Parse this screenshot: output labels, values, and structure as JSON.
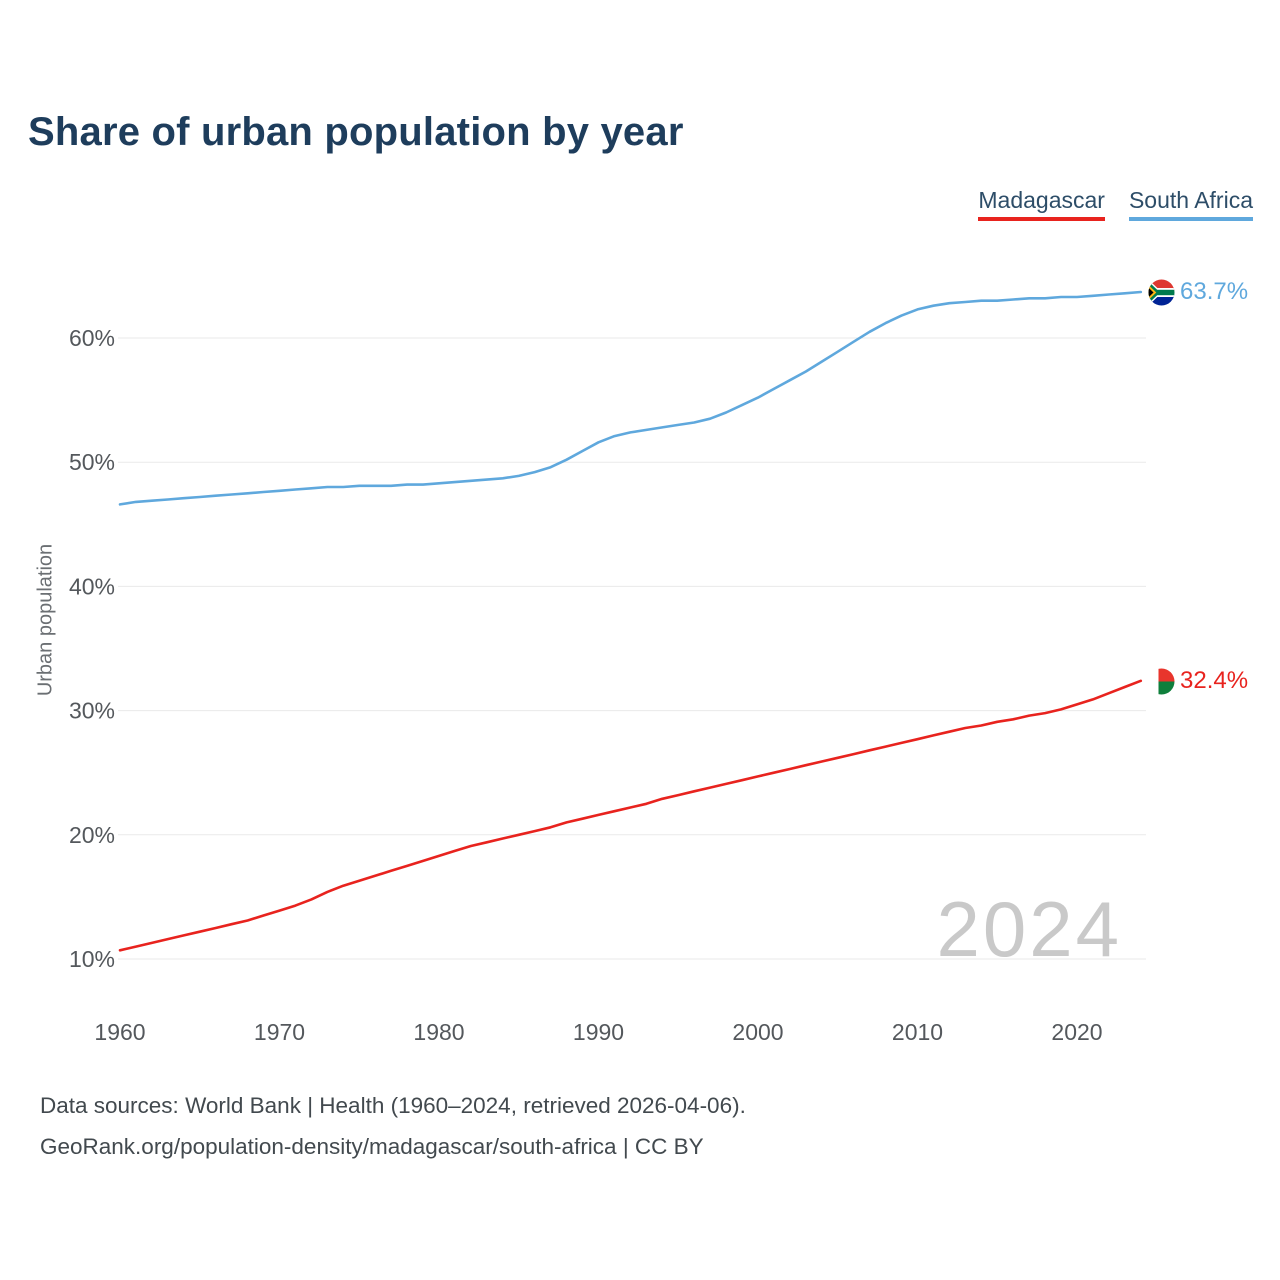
{
  "title": "Share of urban population by year",
  "legend": [
    {
      "label": "Madagascar",
      "color": "#e8231e"
    },
    {
      "label": "South Africa",
      "color": "#5fa8dd"
    }
  ],
  "watermark": "2024",
  "end_labels": [
    {
      "series": "South Africa",
      "value": "63.7%",
      "color": "#5fa8dd",
      "icon": "south-africa-flag-icon"
    },
    {
      "series": "Madagascar",
      "value": "32.4%",
      "color": "#e8231e",
      "icon": "madagascar-flag-icon"
    }
  ],
  "footer": {
    "line1": "Data sources: World Bank | Health (1960–2024, retrieved 2026-04-06).",
    "line2": "GeoRank.org/population-density/madagascar/south-africa | CC BY"
  },
  "chart_data": {
    "type": "line",
    "title": "Share of urban population by year",
    "xlabel": "",
    "ylabel": "Urban population",
    "xlim": [
      1960,
      2024
    ],
    "ylim": [
      10,
      65
    ],
    "grid": "horizontal-only",
    "legend_position": "top-right",
    "x_ticks": [
      1960,
      1970,
      1980,
      1990,
      2000,
      2010,
      2020
    ],
    "y_ticks": [
      "10%",
      "20%",
      "30%",
      "40%",
      "50%",
      "60%"
    ],
    "y_tick_values": [
      10,
      20,
      30,
      40,
      50,
      60
    ],
    "x": [
      1960,
      1961,
      1962,
      1963,
      1964,
      1965,
      1966,
      1967,
      1968,
      1969,
      1970,
      1971,
      1972,
      1973,
      1974,
      1975,
      1976,
      1977,
      1978,
      1979,
      1980,
      1981,
      1982,
      1983,
      1984,
      1985,
      1986,
      1987,
      1988,
      1989,
      1990,
      1991,
      1992,
      1993,
      1994,
      1995,
      1996,
      1997,
      1998,
      1999,
      2000,
      2001,
      2002,
      2003,
      2004,
      2005,
      2006,
      2007,
      2008,
      2009,
      2010,
      2011,
      2012,
      2013,
      2014,
      2015,
      2016,
      2017,
      2018,
      2019,
      2020,
      2021,
      2022,
      2023,
      2024
    ],
    "series": [
      {
        "name": "Madagascar",
        "color": "#e8231e",
        "values": [
          10.7,
          11.0,
          11.3,
          11.6,
          11.9,
          12.2,
          12.5,
          12.8,
          13.1,
          13.5,
          13.9,
          14.3,
          14.8,
          15.4,
          15.9,
          16.3,
          16.7,
          17.1,
          17.5,
          17.9,
          18.3,
          18.7,
          19.1,
          19.4,
          19.7,
          20.0,
          20.3,
          20.6,
          21.0,
          21.3,
          21.6,
          21.9,
          22.2,
          22.5,
          22.9,
          23.2,
          23.5,
          23.8,
          24.1,
          24.4,
          24.7,
          25.0,
          25.3,
          25.6,
          25.9,
          26.2,
          26.5,
          26.8,
          27.1,
          27.4,
          27.7,
          28.0,
          28.3,
          28.6,
          28.8,
          29.1,
          29.3,
          29.6,
          29.8,
          30.1,
          30.5,
          30.9,
          31.4,
          31.9,
          32.4
        ]
      },
      {
        "name": "South Africa",
        "color": "#5fa8dd",
        "values": [
          46.6,
          46.8,
          46.9,
          47.0,
          47.1,
          47.2,
          47.3,
          47.4,
          47.5,
          47.6,
          47.7,
          47.8,
          47.9,
          48.0,
          48.0,
          48.1,
          48.1,
          48.1,
          48.2,
          48.2,
          48.3,
          48.4,
          48.5,
          48.6,
          48.7,
          48.9,
          49.2,
          49.6,
          50.2,
          50.9,
          51.6,
          52.1,
          52.4,
          52.6,
          52.8,
          53.0,
          53.2,
          53.5,
          54.0,
          54.6,
          55.2,
          55.9,
          56.6,
          57.3,
          58.1,
          58.9,
          59.7,
          60.5,
          61.2,
          61.8,
          62.3,
          62.6,
          62.8,
          62.9,
          63.0,
          63.0,
          63.1,
          63.2,
          63.2,
          63.3,
          63.3,
          63.4,
          63.5,
          63.6,
          63.7
        ]
      }
    ]
  }
}
